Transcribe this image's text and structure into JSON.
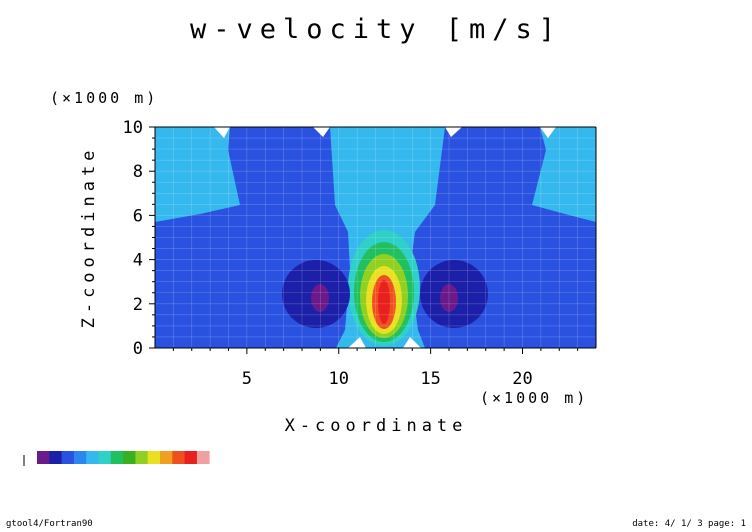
{
  "chart_data": {
    "type": "contour",
    "title": "w-velocity [m/s]",
    "xlabel": "X-coordinate",
    "ylabel": "Z-coordinate",
    "x_unit": "(×1000 m)",
    "y_unit": "(×1000 m)",
    "xlim": [
      0,
      24
    ],
    "ylim": [
      0,
      10
    ],
    "x_ticks": [
      5,
      10,
      15,
      20
    ],
    "y_ticks": [
      0,
      2,
      4,
      6,
      8,
      10
    ],
    "grid": true,
    "legend_placement": "bottom-left",
    "colorbar_colors": [
      "#6a1a8a",
      "#1c20a8",
      "#2a52e0",
      "#2a86f0",
      "#34b8ee",
      "#2ed0c8",
      "#20c060",
      "#38b020",
      "#90d020",
      "#e8e020",
      "#f0a020",
      "#f05020",
      "#e82020",
      "#f0a0a0"
    ],
    "features": [
      {
        "name": "updraft-core",
        "x": 12.5,
        "z": 2.1
      },
      {
        "name": "left-downdraft",
        "x": 9.0,
        "z": 2.3
      },
      {
        "name": "right-downdraft",
        "x": 16.0,
        "z": 2.3
      }
    ]
  },
  "footer": {
    "left": "gtool4/Fortran90",
    "right": "date: 4/ 1/ 3 page: 1"
  }
}
